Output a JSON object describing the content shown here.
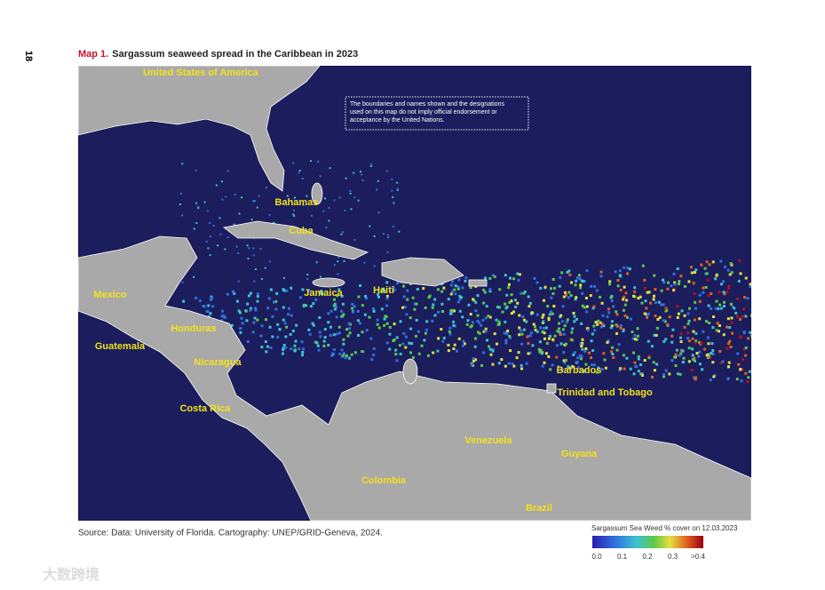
{
  "page_number": "18",
  "title": {
    "prefix": "Map 1.",
    "text": "Sargassum seaweed spread in the Caribbean in 2023"
  },
  "disclaimer": [
    "The boundaries and names shown and the designations",
    "used on this map do not imply official endorsement or",
    "acceptance by the United Nations."
  ],
  "labels": [
    "United States of America",
    "Bahamas",
    "Cuba",
    "Mexico",
    "Jamaica",
    "Haiti",
    "Honduras",
    "Guatemala",
    "Nicaragua",
    "Costa Rica",
    "Barbados",
    "Trinidad and Tobago",
    "Venezuela",
    "Guyana",
    "Colombia",
    "Brazil"
  ],
  "source": "Source: Data: University of Florida. Cartography: UNEP/GRID-Geneva, 2024.",
  "legend": {
    "title": "Sargassum Sea Weed % cover on 12.03.2023",
    "ticks": [
      "0.0",
      "0.1",
      "0.2",
      "0.3",
      ">0.4"
    ]
  },
  "watermark": "大数跨境"
}
